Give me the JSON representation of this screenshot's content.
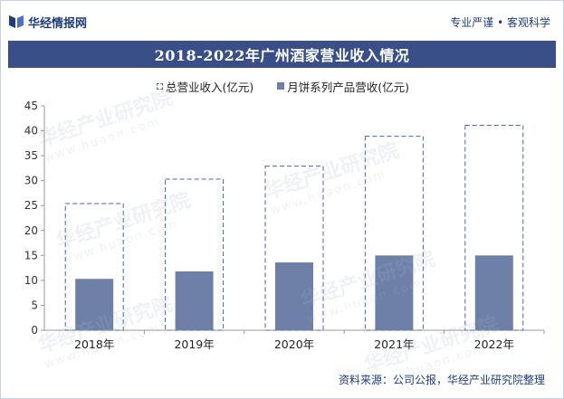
{
  "header": {
    "brand_name": "华经情报网",
    "tagline": "专业严谨 • 客观科学",
    "logo_icon": "huajing-logo-icon"
  },
  "title": "2018-2022年广州酒家营业收入情况",
  "legend": {
    "total": "总营业收入(亿元)",
    "mooncake": "月饼系列产品营收(亿元)"
  },
  "watermark": {
    "name": "华经产业研究院",
    "url": "www.huaon.com"
  },
  "footer": {
    "source": "资料来源：公司公报，华经产业研究院整理"
  },
  "colors": {
    "header_bg": "#3a4f88",
    "total_outline": "#4a64a8",
    "mooncake_fill": "#6f80a8",
    "axis": "#9a9a9a"
  },
  "chart_data": {
    "type": "bar",
    "title": "2018-2022年广州酒家营业收入情况",
    "categories": [
      "2018年",
      "2019年",
      "2020年",
      "2021年",
      "2022年"
    ],
    "series": [
      {
        "name": "总营业收入(亿元)",
        "values": [
          25.4,
          30.3,
          32.9,
          38.9,
          41.1
        ]
      },
      {
        "name": "月饼系列产品营收(亿元)",
        "values": [
          10.3,
          11.8,
          13.6,
          15.0,
          15.0
        ]
      }
    ],
    "ylim": [
      0,
      45
    ],
    "yticks": [
      "0",
      "5",
      "10",
      "15",
      "20",
      "25",
      "30",
      "35",
      "40",
      "45"
    ],
    "xlabel": "",
    "ylabel": "",
    "grid": false,
    "legend_position": "top"
  }
}
